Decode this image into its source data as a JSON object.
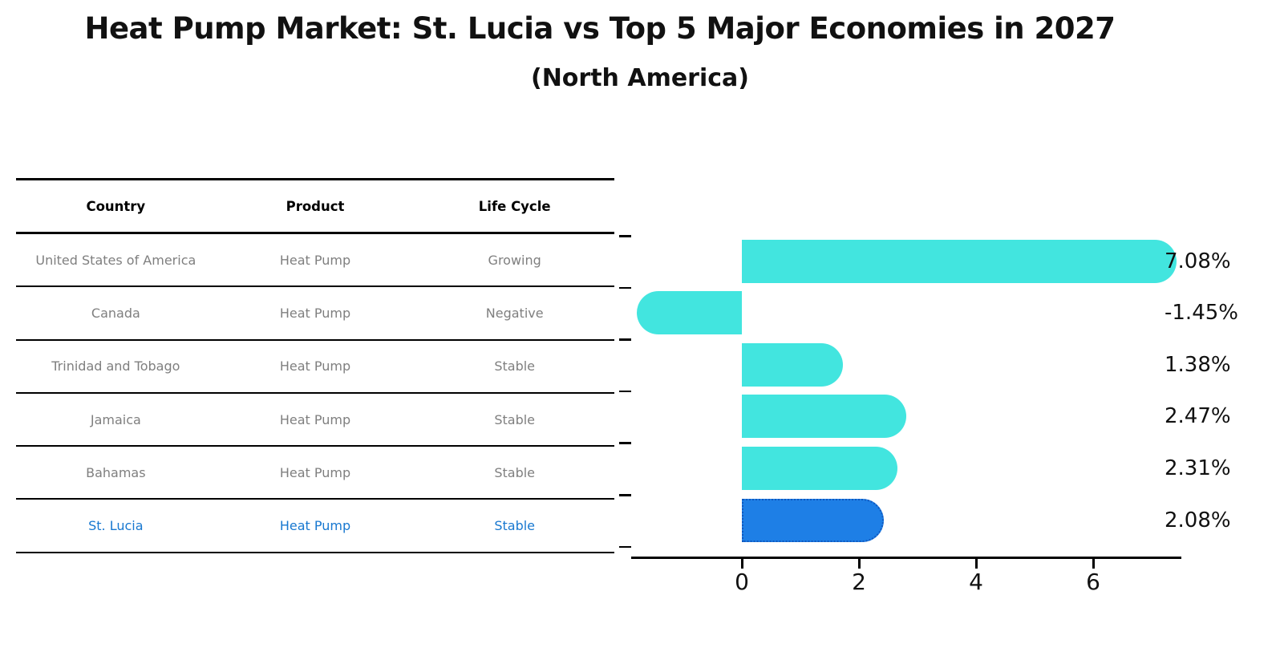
{
  "title": "Heat Pump Market: St. Lucia vs Top 5 Major Economies in 2027",
  "subtitle": "(North America)",
  "table": {
    "headers": [
      "Country",
      "Product",
      "Life Cycle"
    ],
    "rows": [
      {
        "country": "United States of America",
        "product": "Heat Pump",
        "life_cycle": "Growing"
      },
      {
        "country": "Canada",
        "product": "Heat Pump",
        "life_cycle": "Negative"
      },
      {
        "country": "Trinidad and Tobago",
        "product": "Heat Pump",
        "life_cycle": "Stable"
      },
      {
        "country": "Jamaica",
        "product": "Heat Pump",
        "life_cycle": "Stable"
      },
      {
        "country": "Bahamas",
        "product": "Heat Pump",
        "life_cycle": "Stable"
      },
      {
        "country": "St. Lucia",
        "product": "Heat Pump",
        "life_cycle": "Stable"
      }
    ],
    "highlight_row": "St. Lucia",
    "highlight_text_color": "#1878d0",
    "row_text_color": "#7f7f7f"
  },
  "chart_data": {
    "type": "bar",
    "orientation": "horizontal",
    "categories": [
      "United States of America",
      "Canada",
      "Trinidad and Tobago",
      "Jamaica",
      "Bahamas",
      "St. Lucia"
    ],
    "values": [
      7.08,
      -1.45,
      1.38,
      2.47,
      2.31,
      2.08
    ],
    "labels": [
      "7.08%",
      "-1.45%",
      "1.38%",
      "2.47%",
      "2.31%",
      "2.08%"
    ],
    "x_ticks": [
      0,
      2,
      4,
      6
    ],
    "xlim": [
      -1.9,
      7.6
    ],
    "grid": false,
    "legend": "none",
    "bar_color": "#42e5df",
    "highlight_index": 5,
    "highlight_bar_color": "#1e7fe6",
    "highlight_border_color": "#1058bf",
    "value_label_color": "#111111"
  }
}
